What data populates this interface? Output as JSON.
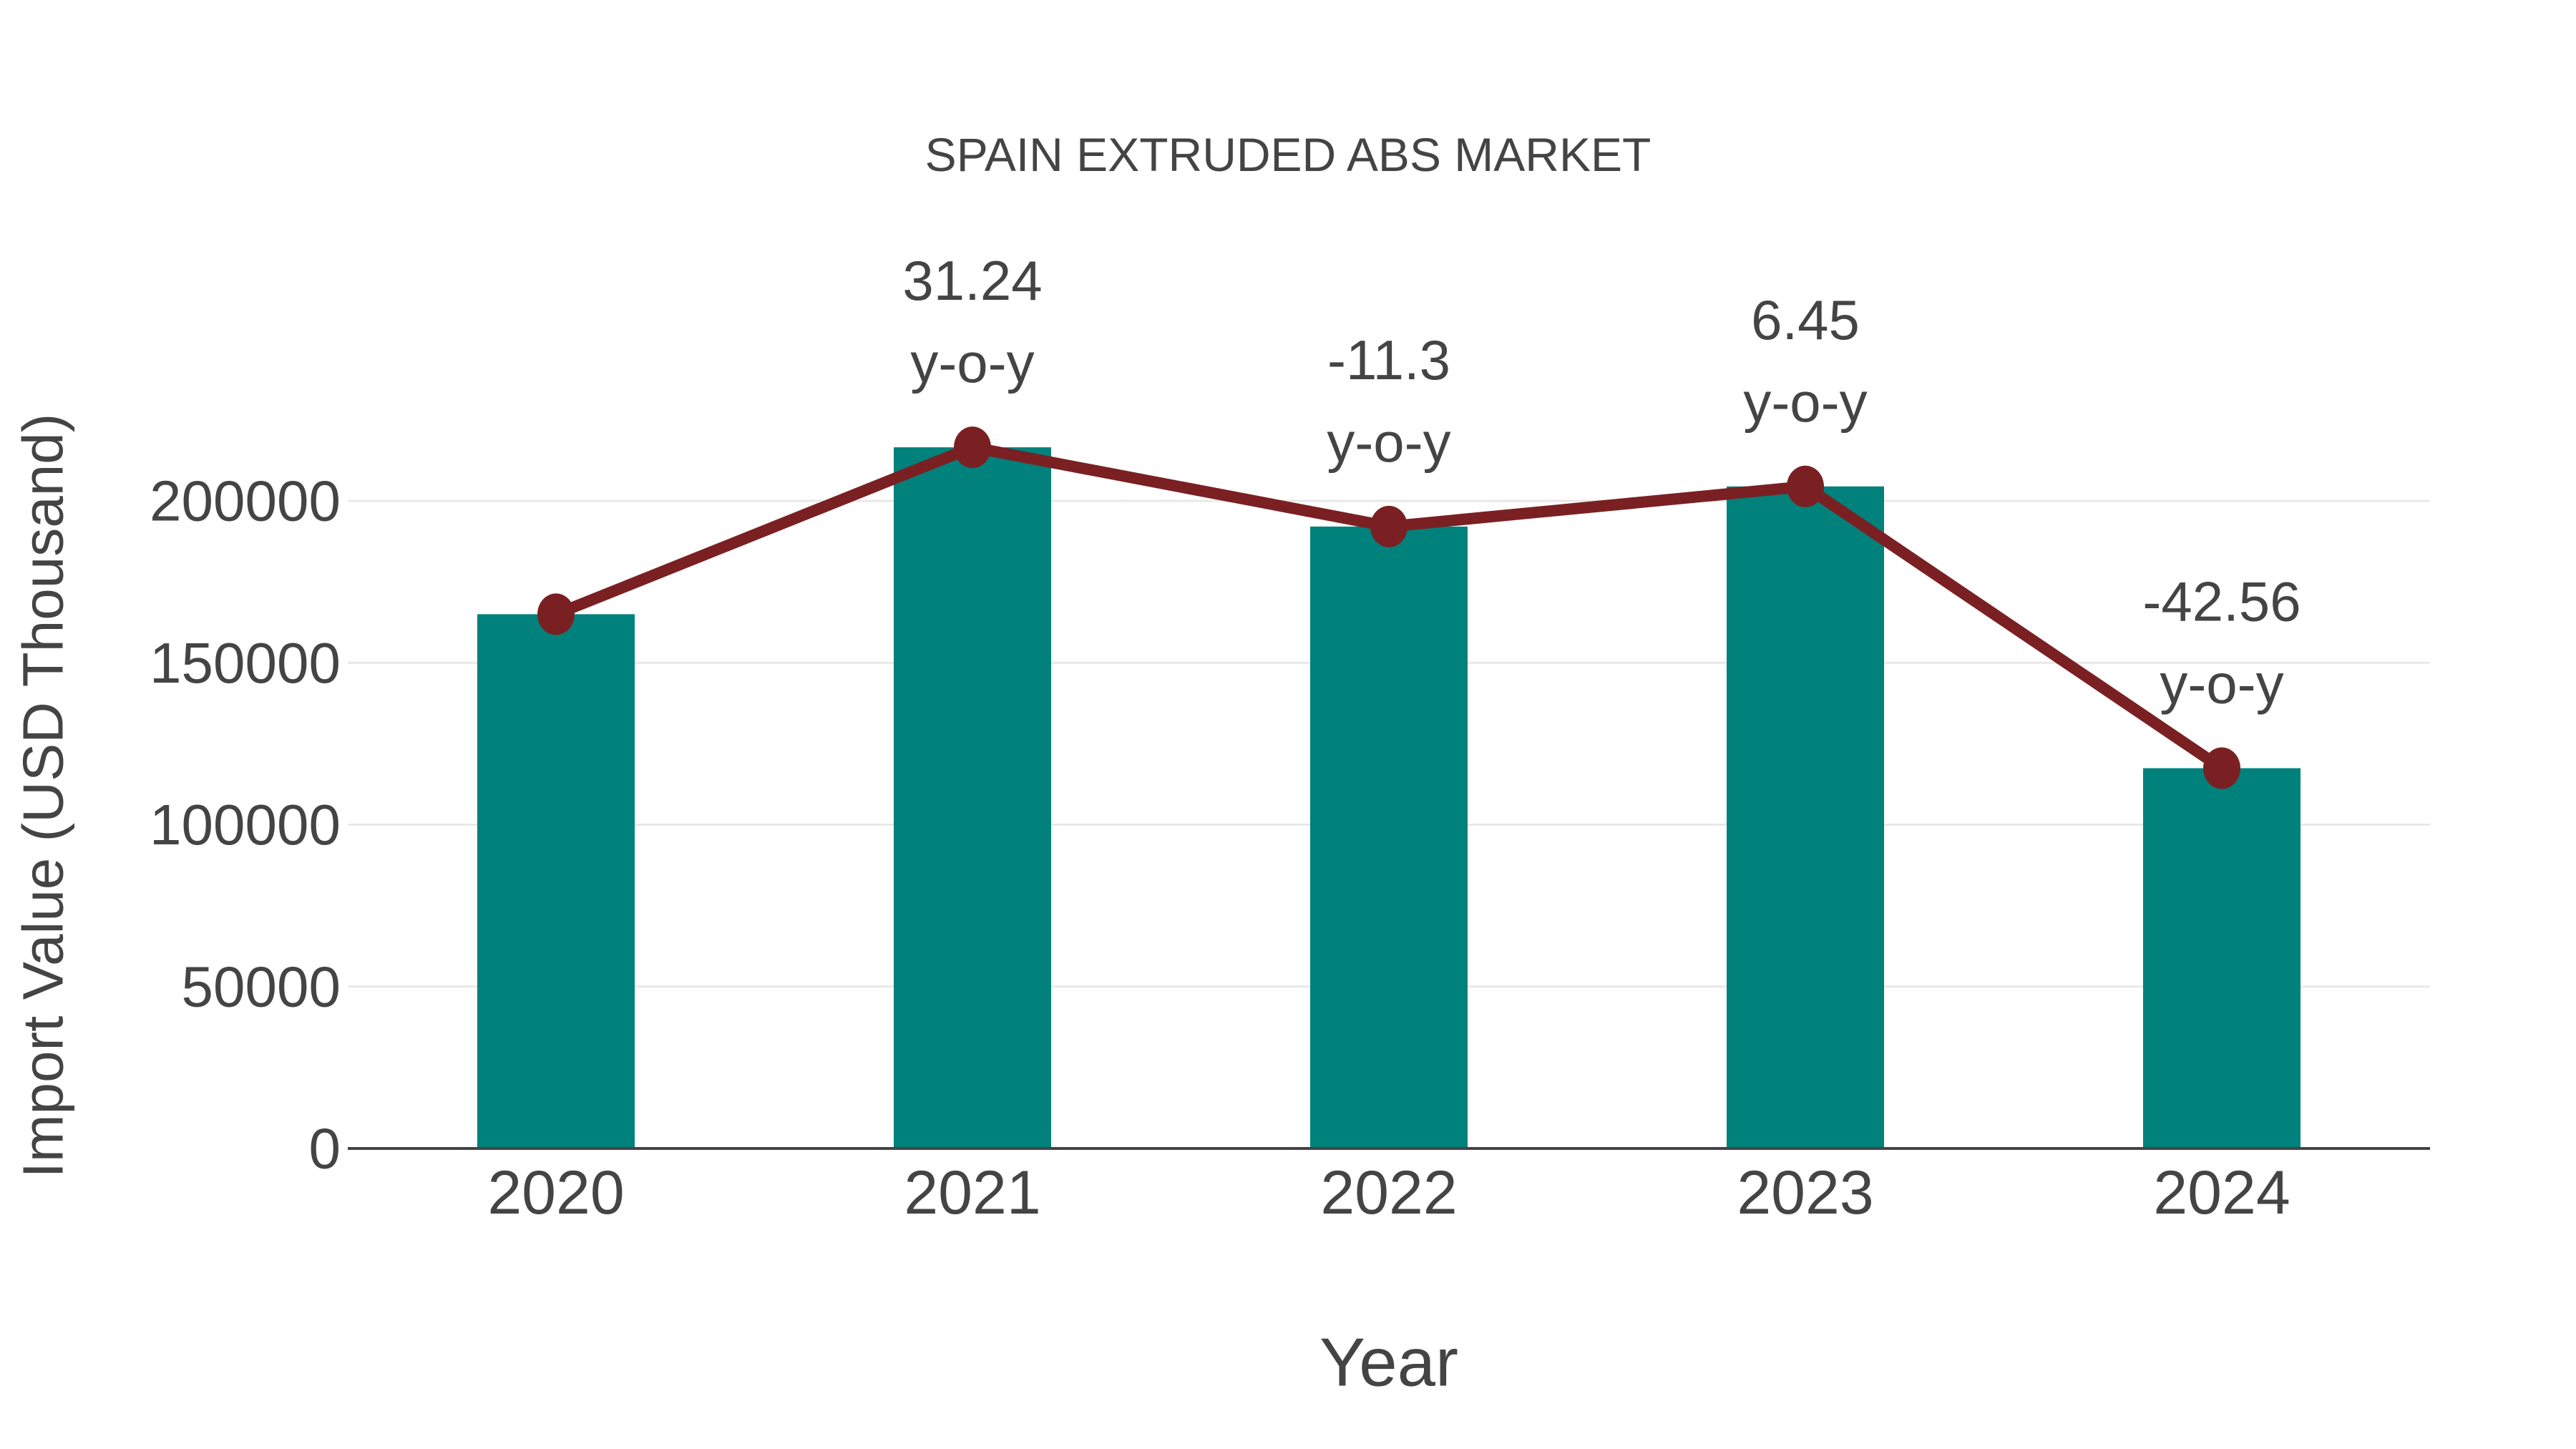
{
  "chart_data": {
    "type": "bar",
    "subtype": "bar-with-line-overlay",
    "title": "SPAIN EXTRUDED ABS MARKET",
    "xlabel": "Year",
    "ylabel": "Import Value (USD Thousand)",
    "categories": [
      "2020",
      "2021",
      "2022",
      "2023",
      "2024"
    ],
    "series": [
      {
        "name": "Import Value (USD Thousand)",
        "type": "bar",
        "values": [
          165000,
          216546,
          192076,
          204465,
          117445
        ]
      },
      {
        "name": "y-o-y change (%)",
        "type": "line",
        "values": [
          null,
          31.24,
          -11.3,
          6.45,
          -42.56
        ],
        "line_follows_bar_tops": true
      }
    ],
    "annotations": [
      {
        "category": "2021",
        "line1": "31.24",
        "line2": "y-o-y"
      },
      {
        "category": "2022",
        "line1": "-11.3",
        "line2": "y-o-y"
      },
      {
        "category": "2023",
        "line1": "6.45",
        "line2": "y-o-y"
      },
      {
        "category": "2024",
        "line1": "-42.56",
        "line2": "y-o-y"
      }
    ],
    "y_ticks": [
      0,
      50000,
      100000,
      150000,
      200000
    ],
    "ylim": [
      0,
      220000
    ],
    "grid": true,
    "legend_position": "none",
    "colors": {
      "bar": "#00817C",
      "line": "#7A2023",
      "marker": "#7A2023",
      "text": "#444444",
      "grid": "#E8E8E8",
      "axis": "#444444",
      "background": "#FFFFFF"
    }
  }
}
